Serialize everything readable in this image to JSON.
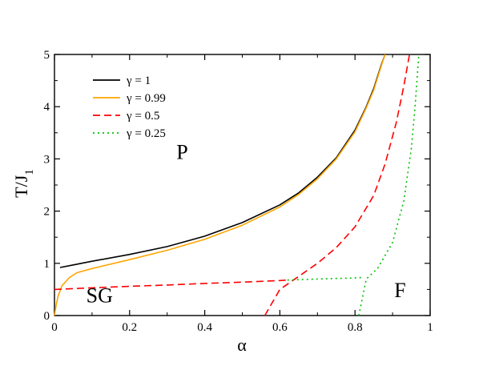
{
  "chart_data": {
    "type": "line",
    "title": "",
    "xlabel": "α",
    "ylabel": "T/J",
    "ylabel_sub": "1",
    "xlim": [
      0,
      1
    ],
    "ylim": [
      0,
      5
    ],
    "x_ticks": [
      0,
      0.2,
      0.4,
      0.6,
      0.8,
      1
    ],
    "x_tick_labels": [
      "0",
      "0.2",
      "0.4",
      "0.6",
      "0.8",
      "1"
    ],
    "y_ticks": [
      0,
      1,
      2,
      3,
      4,
      5
    ],
    "y_tick_labels": [
      "0",
      "1",
      "2",
      "3",
      "4",
      "5"
    ],
    "grid": false,
    "legend_position": "top-left",
    "annotations": [
      {
        "text": "P",
        "x": 0.34,
        "y": 3.0
      },
      {
        "text": "SG",
        "x": 0.12,
        "y": 0.25
      },
      {
        "text": "F",
        "x": 0.92,
        "y": 0.35
      }
    ],
    "series": [
      {
        "name": "γ = 1",
        "color": "#000000",
        "dash": "solid",
        "x": [
          0.015,
          0.05,
          0.1,
          0.2,
          0.3,
          0.4,
          0.5,
          0.6,
          0.65,
          0.7,
          0.75,
          0.8,
          0.83,
          0.85,
          0.87,
          0.88
        ],
        "y": [
          0.92,
          0.97,
          1.04,
          1.17,
          1.32,
          1.52,
          1.78,
          2.12,
          2.35,
          2.65,
          3.02,
          3.55,
          4.0,
          4.35,
          4.8,
          5.0
        ]
      },
      {
        "name": "γ = 0.99",
        "color": "#ffa500",
        "dash": "solid",
        "x": [
          0.0,
          0.005,
          0.01,
          0.02,
          0.04,
          0.06,
          0.1,
          0.2,
          0.3,
          0.4,
          0.5,
          0.6,
          0.65,
          0.7,
          0.75,
          0.8,
          0.83,
          0.85,
          0.87,
          0.88
        ],
        "y": [
          0.0,
          0.22,
          0.38,
          0.57,
          0.73,
          0.82,
          0.9,
          1.07,
          1.25,
          1.46,
          1.73,
          2.08,
          2.32,
          2.62,
          3.0,
          3.52,
          3.98,
          4.32,
          4.78,
          5.0
        ]
      },
      {
        "name": "γ = 0.5",
        "color": "#ff0000",
        "dash": "dashed",
        "x": [
          0.0,
          0.1,
          0.2,
          0.3,
          0.4,
          0.5,
          0.6,
          0.62,
          0.56,
          0.6,
          0.65,
          0.7,
          0.75,
          0.8,
          0.85,
          0.88,
          0.91,
          0.93,
          0.945
        ],
        "y": [
          0.5,
          0.53,
          0.56,
          0.585,
          0.615,
          0.64,
          0.67,
          0.68,
          0.0,
          0.5,
          0.75,
          1.0,
          1.3,
          1.7,
          2.3,
          2.9,
          3.7,
          4.4,
          5.0
        ]
      },
      {
        "name": "γ = 0.25",
        "color": "#00c000",
        "dash": "dotted",
        "x": [
          0.62,
          0.7,
          0.75,
          0.8,
          0.82,
          0.81,
          0.83,
          0.86,
          0.9,
          0.93,
          0.95,
          0.96,
          0.97
        ],
        "y": [
          0.68,
          0.7,
          0.71,
          0.72,
          0.73,
          0.0,
          0.7,
          0.9,
          1.4,
          2.2,
          3.2,
          4.0,
          5.0
        ]
      }
    ]
  }
}
